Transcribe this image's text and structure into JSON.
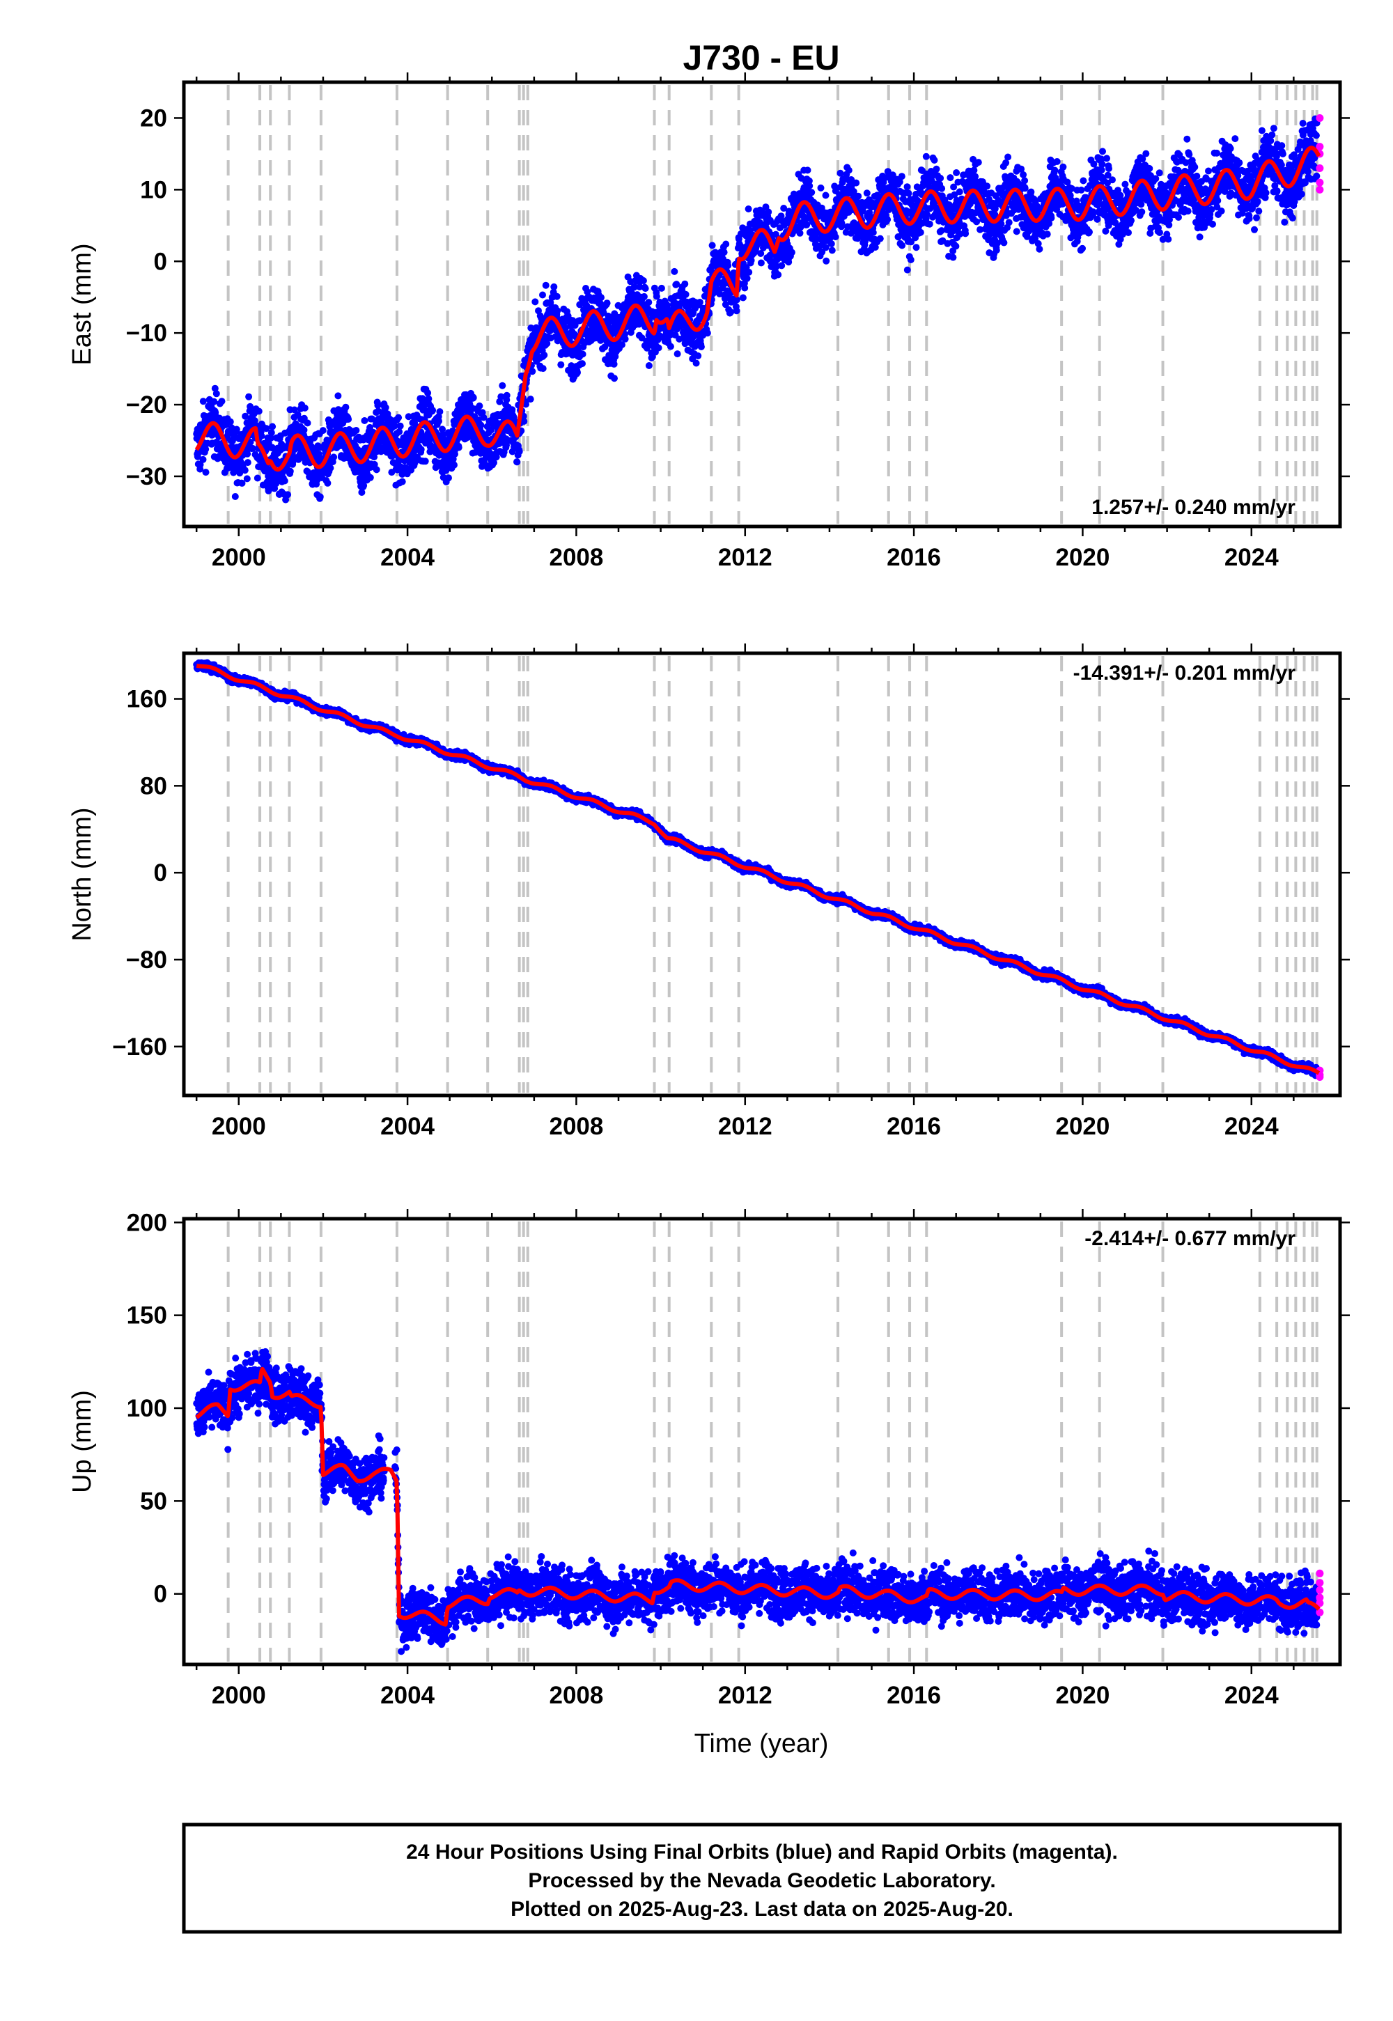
{
  "chart_data": {
    "type": "scatter",
    "title": "J730 - EU",
    "xlabel": "Time (year)",
    "x_range": [
      1998.7,
      2026.1
    ],
    "x_ticks": [
      2000,
      2004,
      2008,
      2012,
      2016,
      2020,
      2024
    ],
    "equipment_changes": [
      1999.75,
      2000.5,
      2000.75,
      2001.2,
      2001.95,
      2003.75,
      2004.95,
      2005.9,
      2006.65,
      2006.75,
      2006.85,
      2009.85,
      2010.2,
      2011.2,
      2011.85,
      2014.2,
      2015.4,
      2015.9,
      2016.3,
      2019.5,
      2020.4,
      2021.9,
      2024.2,
      2024.6,
      2024.85,
      2025.05,
      2025.25,
      2025.45,
      2025.55
    ],
    "legend": {
      "final_orbits_color": "#0000ff",
      "rapid_orbits_color": "#ff00ff",
      "model_color": "#ff0000"
    },
    "panels": [
      {
        "name": "East",
        "ylabel": "East (mm)",
        "ylim": [
          -37,
          25
        ],
        "y_ticks": [
          20,
          10,
          0,
          -10,
          -20,
          -30
        ],
        "y_tick_labels": [
          "20",
          "10",
          "0",
          "−10",
          "−20",
          "−30"
        ],
        "rate_label": "1.257+/- 0.240 mm/yr",
        "rate_position": "bottom-right",
        "seasonal_amplitude_mm": 2.2,
        "scatter_spread_mm": 2.2,
        "model_x": [
          1999.0,
          2000.4,
          2000.45,
          2000.7,
          2000.75,
          2001.2,
          2001.25,
          2002.0,
          2005.9,
          2006.6,
          2006.8,
          2006.95,
          2008.0,
          2009.85,
          2009.9,
          2010.15,
          2010.2,
          2011.1,
          2011.2,
          2011.8,
          2011.85,
          2012.7,
          2012.8,
          2013.3,
          2016.0,
          2020.0,
          2024.0,
          2025.6
        ],
        "model_y": [
          -24.5,
          -25.5,
          -27.5,
          -27.5,
          -26.5,
          -27.5,
          -26.5,
          -26.5,
          -23.5,
          -25.0,
          -14.0,
          -10.5,
          -9.5,
          -8.0,
          -6.0,
          -8.0,
          -10.0,
          -6.5,
          -3.5,
          -3.0,
          2.5,
          2.0,
          5.0,
          6.0,
          7.5,
          8.0,
          11.0,
          14.0
        ],
        "rapid_orbit_values": [
          20,
          16,
          15,
          13,
          11,
          10
        ]
      },
      {
        "name": "North",
        "ylabel": "North (mm)",
        "ylim": [
          -205,
          202
        ],
        "y_ticks": [
          160,
          80,
          0,
          -80,
          -160
        ],
        "y_tick_labels": [
          "160",
          "80",
          "0",
          "−80",
          "−160"
        ],
        "rate_label": "-14.391+/- 0.201 mm/yr",
        "rate_position": "top-right",
        "seasonal_amplitude_mm": 1.8,
        "scatter_spread_mm": 1.8,
        "model_x": [
          1999.0,
          2003.6,
          2003.8,
          2006.6,
          2006.8,
          2009.85,
          2010.15,
          2025.6
        ],
        "model_y": [
          192,
          128,
          126,
          89,
          86,
          46,
          32,
          -185
        ],
        "rapid_orbit_values": [
          -182,
          -186,
          -188
        ]
      },
      {
        "name": "Up",
        "ylabel": "Up (mm)",
        "ylim": [
          -38,
          202
        ],
        "y_ticks": [
          200,
          150,
          100,
          50,
          0
        ],
        "y_tick_labels": [
          "200",
          "150",
          "100",
          "50",
          "0"
        ],
        "rate_label": "-2.414+/- 0.677 mm/yr",
        "rate_position": "top-right",
        "seasonal_amplitude_mm": 2.5,
        "scatter_spread_mm": 7,
        "model_x": [
          1999.0,
          1999.5,
          1999.75,
          1999.8,
          2000.5,
          2000.55,
          2000.75,
          2000.8,
          2001.2,
          2001.25,
          2001.95,
          2002.0,
          2002.5,
          2002.8,
          2003.3,
          2003.6,
          2003.75,
          2003.8,
          2004.9,
          2004.95,
          2005.9,
          2005.95,
          2006.6,
          2006.65,
          2009.8,
          2009.85,
          2010.2,
          2010.25,
          2014.2,
          2014.25,
          2016.3,
          2016.35,
          2019.5,
          2019.55,
          2021.9,
          2021.95,
          2024.6,
          2024.65,
          2025.3,
          2025.35,
          2025.6
        ],
        "model_y": [
          97,
          100,
          97,
          112,
          112,
          120,
          115,
          108,
          108,
          105,
          103,
          66,
          67,
          63,
          64,
          66,
          62,
          -10,
          -14,
          -5,
          -3,
          0,
          0,
          2,
          -3,
          3,
          3,
          5,
          0,
          2,
          -3,
          0,
          -1,
          2,
          2,
          -1,
          -4,
          -5,
          -5,
          -7,
          -9
        ],
        "rapid_orbit_values": [
          11,
          6,
          2,
          -2,
          -5,
          -10
        ]
      }
    ]
  },
  "footer": {
    "line1": "24 Hour Positions Using Final Orbits (blue) and Rapid Orbits (magenta).",
    "line2": "Processed by the Nevada Geodetic Laboratory.",
    "line3": "Plotted on 2025-Aug-23. Last data on 2025-Aug-20."
  }
}
